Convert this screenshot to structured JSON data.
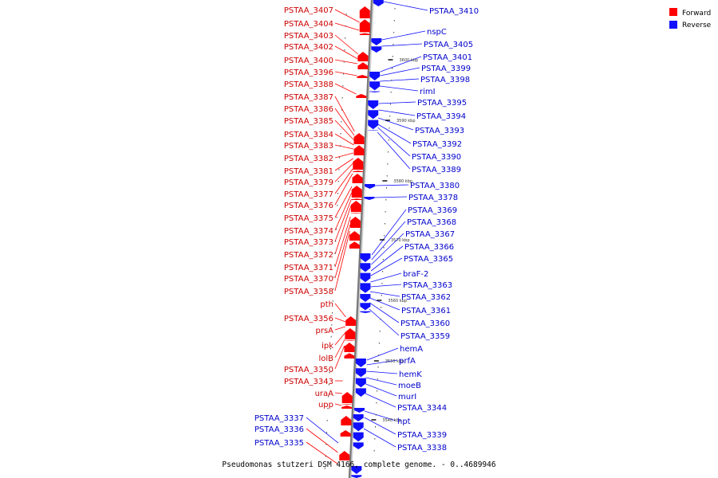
{
  "caption": "Pseudomonas stutzeri DSM 4166, complete genome. - 0..4689946",
  "legend": [
    {
      "label": "Forward",
      "color": "#ff0000"
    },
    {
      "label": "Reverse",
      "color": "#1010ff"
    }
  ],
  "colors": {
    "forward": "#ff0000",
    "reverse": "#1010ff",
    "backbone": "#9a9a9a",
    "forward_text": "#cc0000",
    "reverse_text": "#0000cc"
  },
  "ticks": [
    {
      "label": "3600 kbp",
      "kbp": 3600
    },
    {
      "label": "3590 kbp",
      "kbp": 3590
    },
    {
      "label": "3580 kbp",
      "kbp": 3580
    },
    {
      "label": "3570 kbp",
      "kbp": 3570
    },
    {
      "label": "3560 kbp",
      "kbp": 3560
    },
    {
      "label": "3550 kbp",
      "kbp": 3550
    },
    {
      "label": "3540 kbp",
      "kbp": 3540
    }
  ],
  "forward_genes": [
    "PSTAA_3407",
    "PSTAA_3404",
    "PSTAA_3403",
    "PSTAA_3402",
    "PSTAA_3400",
    "PSTAA_3396",
    "PSTAA_3388",
    "PSTAA_3387",
    "PSTAA_3386",
    "PSTAA_3385",
    "PSTAA_3384",
    "PSTAA_3383",
    "PSTAA_3382",
    "PSTAA_3381",
    "PSTAA_3379",
    "PSTAA_3377",
    "PSTAA_3376",
    "PSTAA_3375",
    "PSTAA_3374",
    "PSTAA_3373",
    "PSTAA_3372",
    "PSTAA_3371",
    "PSTAA_3370",
    "PSTAA_3358",
    "pth",
    "PSTAA_3356",
    "prsA",
    "ipk",
    "lolB",
    "PSTAA_3350",
    "PSTAA_3343",
    "uraA",
    "upp"
  ],
  "reverse_genes_left": [
    "PSTAA_3337",
    "PSTAA_3336",
    "PSTAA_3335"
  ],
  "reverse_genes": [
    "PSTAA_3410",
    "nspC",
    "PSTAA_3405",
    "PSTAA_3401",
    "PSTAA_3399",
    "PSTAA_3398",
    "rimI",
    "PSTAA_3395",
    "PSTAA_3394",
    "PSTAA_3393",
    "PSTAA_3392",
    "PSTAA_3390",
    "PSTAA_3389",
    "PSTAA_3380",
    "PSTAA_3378",
    "PSTAA_3369",
    "PSTAA_3368",
    "PSTAA_3367",
    "PSTAA_3366",
    "PSTAA_3365",
    "braF-2",
    "PSTAA_3363",
    "PSTAA_3362",
    "PSTAA_3361",
    "PSTAA_3360",
    "PSTAA_3359",
    "hemA",
    "prfA",
    "hemK",
    "moeB",
    "murI",
    "PSTAA_3344",
    "hpt",
    "PSTAA_3339",
    "PSTAA_3338"
  ]
}
